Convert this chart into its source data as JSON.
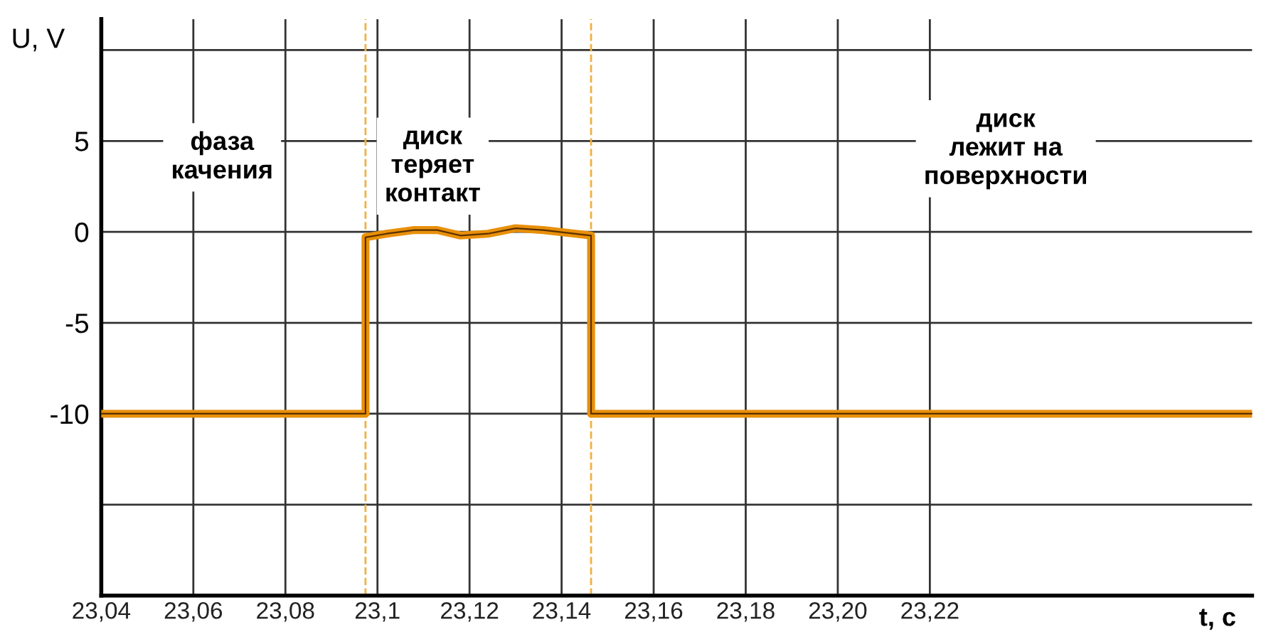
{
  "chart_data": {
    "type": "line",
    "xlabel": "t, c",
    "ylabel": "U, V",
    "xlim": [
      23.04,
      23.29
    ],
    "xticks": [
      {
        "value": 23.04,
        "label": "23,04"
      },
      {
        "value": 23.06,
        "label": "23,06"
      },
      {
        "value": 23.08,
        "label": "23,08"
      },
      {
        "value": 23.1,
        "label": "23,1"
      },
      {
        "value": 23.12,
        "label": "23,12"
      },
      {
        "value": 23.14,
        "label": "23,14"
      },
      {
        "value": 23.16,
        "label": "23,16"
      },
      {
        "value": 23.18,
        "label": "23,18"
      },
      {
        "value": 23.2,
        "label": "23,20"
      },
      {
        "value": 23.22,
        "label": "23,22"
      }
    ],
    "ylim": [
      -20,
      11.7
    ],
    "yticks": [
      {
        "value": -15,
        "label": null
      },
      -10,
      -5,
      0,
      5,
      {
        "value": 10,
        "label": null
      }
    ],
    "grid": true,
    "series": [
      {
        "color": "#e8900a",
        "x": [
          23.04,
          23.06,
          23.08,
          23.0974,
          23.0974,
          23.102,
          23.108,
          23.113,
          23.118,
          23.124,
          23.13,
          23.136,
          23.1464,
          23.1464,
          23.2,
          23.29
        ],
        "values": [
          -10,
          -10,
          -10,
          -10,
          -0.3,
          -0.1,
          0.1,
          0.1,
          -0.2,
          -0.1,
          0.2,
          0.1,
          -0.2,
          -10,
          -10,
          -10
        ]
      }
    ],
    "ref_lines": [
      {
        "axis": "x",
        "value": 23.0974,
        "color": "#f0b040",
        "line_style": "dashed"
      },
      {
        "axis": "x",
        "value": 23.1464,
        "color": "#f0b040",
        "line_style": "dashed"
      }
    ],
    "annotations": [
      "фаза\nкачения",
      "диск\nтеряет\nконтакт",
      "диск\nлежит на\nповерхности"
    ]
  }
}
